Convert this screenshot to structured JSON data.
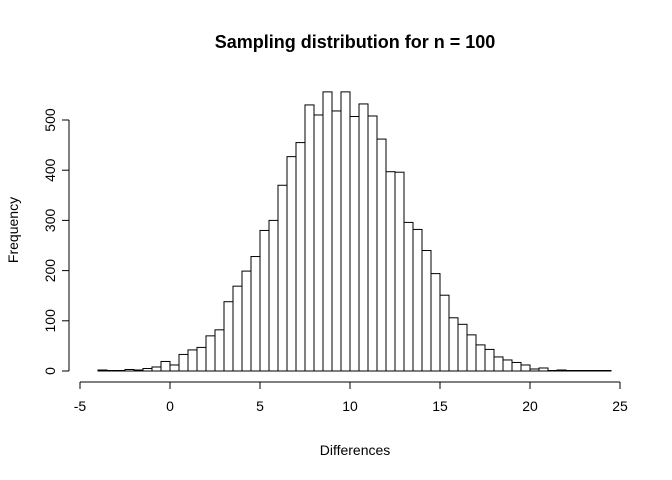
{
  "chart_data": {
    "type": "bar",
    "subtype": "histogram",
    "title": "Sampling distribution for n = 100",
    "xlabel": "Differences",
    "ylabel": "Frequency",
    "xlim": [
      -5,
      25
    ],
    "ylim": [
      0,
      560
    ],
    "x_ticks": [
      "-5",
      "0",
      "5",
      "10",
      "15",
      "20",
      "25"
    ],
    "y_ticks": [
      "0",
      "100",
      "200",
      "300",
      "400",
      "500"
    ],
    "bin_start": -4,
    "bin_width": 0.5,
    "values": [
      2,
      1,
      1,
      3,
      2,
      5,
      8,
      19,
      12,
      33,
      42,
      47,
      70,
      82,
      138,
      169,
      199,
      228,
      280,
      300,
      370,
      427,
      455,
      530,
      510,
      556,
      518,
      556,
      507,
      532,
      508,
      462,
      397,
      396,
      296,
      282,
      240,
      194,
      151,
      106,
      93,
      72,
      52,
      43,
      28,
      22,
      17,
      12,
      4,
      6,
      1,
      2,
      1,
      1,
      1,
      1,
      1
    ],
    "grid": false,
    "legend": "none",
    "bar_fill": "#ffffff",
    "bar_stroke": "#000000"
  }
}
